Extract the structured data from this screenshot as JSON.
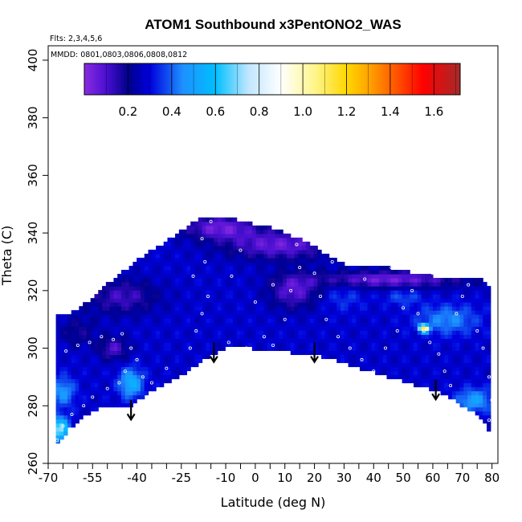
{
  "chart_data": {
    "type": "heatmap",
    "title": "ATOM1 Southbound x3PentONO2_WAS",
    "annotations": {
      "flights": "Flts: 2,3,4,5,6",
      "dates": "MMDD: 0801,0803,0806,0808,0812"
    },
    "xlabel": "Latitude (deg N)",
    "ylabel": "Theta (C)",
    "xlim": [
      -70,
      82
    ],
    "ylim": [
      260,
      405
    ],
    "x_ticks": [
      -70,
      -55,
      -40,
      -25,
      -10,
      0,
      10,
      20,
      30,
      40,
      50,
      60,
      70,
      80
    ],
    "x_minor_ticks": [
      -65,
      -60,
      -50,
      -45,
      -35,
      -30,
      -20,
      -15,
      -5,
      5,
      15,
      25,
      35,
      45,
      55,
      65,
      75
    ],
    "y_ticks": [
      260,
      280,
      300,
      320,
      340,
      360,
      380,
      400
    ],
    "colorbar": {
      "min": 0.0,
      "max": 1.72,
      "ticks": [
        0.2,
        0.4,
        0.6,
        0.8,
        1.0,
        1.2,
        1.4,
        1.6
      ],
      "stops": [
        {
          "v": 0.0,
          "c": "#8a2be2"
        },
        {
          "v": 0.1,
          "c": "#4b0fd0"
        },
        {
          "v": 0.2,
          "c": "#00008b"
        },
        {
          "v": 0.3,
          "c": "#0000dd"
        },
        {
          "v": 0.45,
          "c": "#1e90ff"
        },
        {
          "v": 0.6,
          "c": "#00bfff"
        },
        {
          "v": 0.75,
          "c": "#bfe6ff"
        },
        {
          "v": 0.9,
          "c": "#ffffff"
        },
        {
          "v": 1.05,
          "c": "#fff68f"
        },
        {
          "v": 1.2,
          "c": "#ffd700"
        },
        {
          "v": 1.3,
          "c": "#ffa500"
        },
        {
          "v": 1.45,
          "c": "#ff4500"
        },
        {
          "v": 1.55,
          "c": "#ff0000"
        },
        {
          "v": 1.72,
          "c": "#a52a2a"
        }
      ]
    },
    "field": {
      "top_boundary": [
        [
          -68,
          312
        ],
        [
          -63,
          312
        ],
        [
          -57,
          316
        ],
        [
          -53,
          320
        ],
        [
          -48,
          324
        ],
        [
          -43,
          328
        ],
        [
          -38,
          332
        ],
        [
          -32,
          336
        ],
        [
          -26,
          340
        ],
        [
          -21,
          344
        ],
        [
          -17,
          346
        ],
        [
          -10,
          346
        ],
        [
          -5,
          344
        ],
        [
          5,
          342
        ],
        [
          15,
          338
        ],
        [
          22,
          334
        ],
        [
          28,
          330
        ],
        [
          35,
          328
        ],
        [
          45,
          328
        ],
        [
          55,
          326
        ],
        [
          65,
          324
        ],
        [
          76,
          324
        ],
        [
          80,
          321
        ],
        [
          80,
          300
        ]
      ],
      "bottom_boundary": [
        [
          -68,
          265
        ],
        [
          -63,
          272
        ],
        [
          -57,
          277
        ],
        [
          -50,
          280
        ],
        [
          -43,
          279
        ],
        [
          -38,
          283
        ],
        [
          -32,
          287
        ],
        [
          -24,
          291
        ],
        [
          -16,
          297
        ],
        [
          -8,
          301
        ],
        [
          5,
          299
        ],
        [
          20,
          298
        ],
        [
          32,
          294
        ],
        [
          45,
          290
        ],
        [
          55,
          287
        ],
        [
          62,
          285
        ],
        [
          70,
          280
        ],
        [
          76,
          276
        ],
        [
          79,
          271
        ],
        [
          80,
          271
        ]
      ],
      "background_value": 0.28,
      "patches": [
        {
          "x": -12,
          "y": 342,
          "rx": 12,
          "ry": 4,
          "v": 0.05
        },
        {
          "x": 8,
          "y": 336,
          "rx": 18,
          "ry": 5,
          "v": 0.06
        },
        {
          "x": -45,
          "y": 318,
          "rx": 12,
          "ry": 6,
          "v": 0.12
        },
        {
          "x": 45,
          "y": 324,
          "rx": 25,
          "ry": 3,
          "v": 0.05
        },
        {
          "x": -60,
          "y": 306,
          "rx": 6,
          "ry": 5,
          "v": 0.18
        },
        {
          "x": -48,
          "y": 300,
          "rx": 5,
          "ry": 4,
          "v": 0.1
        },
        {
          "x": 13,
          "y": 320,
          "rx": 8,
          "ry": 6,
          "v": 0.08
        },
        {
          "x": 30,
          "y": 318,
          "rx": 7,
          "ry": 5,
          "v": 0.35
        },
        {
          "x": -65,
          "y": 285,
          "rx": 4,
          "ry": 5,
          "v": 0.48
        },
        {
          "x": -66,
          "y": 272,
          "rx": 3,
          "ry": 4,
          "v": 0.72
        },
        {
          "x": -42,
          "y": 288,
          "rx": 4,
          "ry": 5,
          "v": 0.55
        },
        {
          "x": 65,
          "y": 310,
          "rx": 10,
          "ry": 5,
          "v": 0.45
        },
        {
          "x": 74,
          "y": 282,
          "rx": 6,
          "ry": 4,
          "v": 0.5
        },
        {
          "x": 50,
          "y": 318,
          "rx": 6,
          "ry": 3,
          "v": 0.38
        },
        {
          "x": 57,
          "y": 307,
          "rx": 1.5,
          "ry": 1.2,
          "v": 1.35
        }
      ]
    },
    "samples": [
      [
        -64,
        299
      ],
      [
        -60,
        301
      ],
      [
        -56,
        302
      ],
      [
        -52,
        304
      ],
      [
        -48,
        303
      ],
      [
        -45,
        305
      ],
      [
        -42,
        300
      ],
      [
        -40,
        296
      ],
      [
        -44,
        292
      ],
      [
        -46,
        288
      ],
      [
        -50,
        286
      ],
      [
        -55,
        283
      ],
      [
        -58,
        280
      ],
      [
        -62,
        277
      ],
      [
        -65,
        273
      ],
      [
        -67,
        268
      ],
      [
        -38,
        290
      ],
      [
        -35,
        288
      ],
      [
        -30,
        293
      ],
      [
        -22,
        300
      ],
      [
        -20,
        306
      ],
      [
        -18,
        312
      ],
      [
        -16,
        318
      ],
      [
        -21,
        325
      ],
      [
        -17,
        330
      ],
      [
        -18,
        338
      ],
      [
        -15,
        344
      ],
      [
        -9,
        302
      ],
      [
        -3,
        300
      ],
      [
        3,
        304
      ],
      [
        6,
        301
      ],
      [
        10,
        310
      ],
      [
        12,
        320
      ],
      [
        15,
        328
      ],
      [
        14,
        336
      ],
      [
        18,
        340
      ],
      [
        20,
        326
      ],
      [
        22,
        318
      ],
      [
        24,
        310
      ],
      [
        28,
        304
      ],
      [
        32,
        300
      ],
      [
        36,
        296
      ],
      [
        40,
        292
      ],
      [
        44,
        300
      ],
      [
        48,
        306
      ],
      [
        50,
        314
      ],
      [
        53,
        320
      ],
      [
        55,
        312
      ],
      [
        57,
        306
      ],
      [
        59,
        302
      ],
      [
        62,
        298
      ],
      [
        64,
        292
      ],
      [
        66,
        287
      ],
      [
        68,
        312
      ],
      [
        70,
        318
      ],
      [
        72,
        322
      ],
      [
        75,
        306
      ],
      [
        77,
        300
      ],
      [
        79,
        290
      ],
      [
        80,
        282
      ],
      [
        79,
        275
      ],
      [
        60,
        326
      ],
      [
        46,
        328
      ],
      [
        37,
        324
      ],
      [
        26,
        330
      ],
      [
        -5,
        334
      ],
      [
        -8,
        325
      ],
      [
        0,
        316
      ],
      [
        6,
        322
      ]
    ],
    "arrows": [
      -42,
      -14,
      20,
      61
    ],
    "arrow_values": [
      {
        "x": -42,
        "y": 282
      },
      {
        "x": -14,
        "y": 302
      },
      {
        "x": 20,
        "y": 302
      },
      {
        "x": 61,
        "y": 289
      }
    ]
  }
}
